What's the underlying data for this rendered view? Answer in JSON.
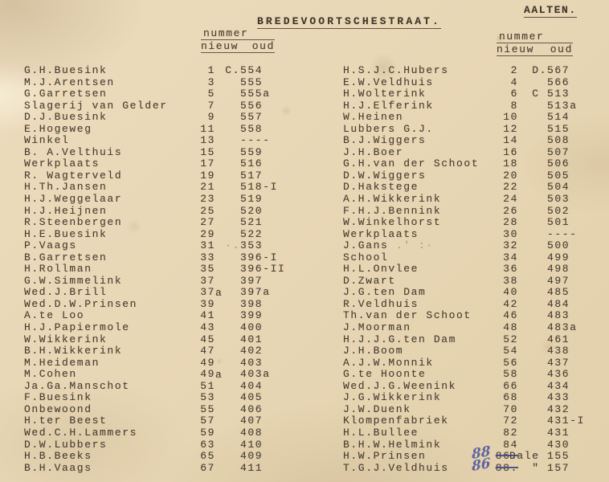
{
  "page": {
    "region_label": "AALTEN.",
    "street_title": "BREDEVOORTSCHESTRAAT.",
    "header": {
      "group": "nummer",
      "new": "nieuw",
      "old": "oud"
    },
    "ink_color": "#4a3e32",
    "handwriting_ink_color": "#464d9e",
    "paper_color": "#e8d7b5"
  },
  "left_column": {
    "rows": [
      {
        "name": "G.H.Buesink",
        "nieuw": "1",
        "oud": "554",
        "oud_prefix": "C."
      },
      {
        "name": "M.J.Arentsen",
        "nieuw": "3",
        "oud": "555"
      },
      {
        "name": "G.Garretsen",
        "nieuw": "5",
        "oud": "555a"
      },
      {
        "name": "Slagerij van Gelder",
        "nieuw": "7",
        "oud": "556"
      },
      {
        "name": "D.J.Buesink",
        "nieuw": "9",
        "oud": "557"
      },
      {
        "name": "E.Hogeweg",
        "nieuw": "11",
        "oud": "558"
      },
      {
        "name": "Winkel",
        "nieuw": "13",
        "oud": "----"
      },
      {
        "name": "B. A.Velthuis",
        "nieuw": "15",
        "oud": "559"
      },
      {
        "name": "Werkplaats",
        "nieuw": "17",
        "oud": "516"
      },
      {
        "name": "R. Wagterveld",
        "nieuw": "19",
        "oud": "517"
      },
      {
        "name": "H.Th.Jansen",
        "nieuw": "21",
        "oud": "518-I"
      },
      {
        "name": "H.J.Weggelaar",
        "nieuw": "23",
        "oud": "519"
      },
      {
        "name": "H.J.Heijnen",
        "nieuw": "25",
        "oud": "520"
      },
      {
        "name": "R.Steenbergen",
        "nieuw": "27",
        "oud": "521"
      },
      {
        "name": "H.E.Buesink",
        "nieuw": "29",
        "oud": "522"
      },
      {
        "name": "P.Vaags",
        "nieuw": "31",
        "oud": "353",
        "oud_prefix": "·.",
        "oud_prefix_faint": true
      },
      {
        "name": "B.Garretsen",
        "nieuw": "33",
        "oud": "396-I"
      },
      {
        "name": "H.Rollman",
        "nieuw": "35",
        "oud": "396-II"
      },
      {
        "name": "G.W.Simmelink",
        "nieuw": "37",
        "oud": "397"
      },
      {
        "name": "Wed.J.Brill",
        "nieuw": "37",
        "nieuw_suffix": "a",
        "oud": "397a"
      },
      {
        "name": "Wed.D.W.Prinsen",
        "nieuw": "39",
        "oud": "398"
      },
      {
        "name": "A.te Loo",
        "nieuw": "41",
        "oud": "399"
      },
      {
        "name": "H.J.Papiermole",
        "nieuw": "43",
        "oud": "400"
      },
      {
        "name": "W.Wikkerink",
        "nieuw": "45",
        "oud": "401"
      },
      {
        "name": "B.H.Wikkerink",
        "nieuw": "47",
        "oud": "402"
      },
      {
        "name": "M.Heideman",
        "nieuw": "49",
        "oud": "403"
      },
      {
        "name": "M.Cohen",
        "nieuw": "49",
        "nieuw_suffix": "a",
        "oud": "403a"
      },
      {
        "name": "Ja.Ga.Manschot",
        "nieuw": "51",
        "oud": "404"
      },
      {
        "name": "F.Buesink",
        "nieuw": "53",
        "oud": "405"
      },
      {
        "name": "Onbewoond",
        "nieuw": "55",
        "oud": "406"
      },
      {
        "name": "H.ter Beest",
        "nieuw": "57",
        "oud": "407"
      },
      {
        "name": "Wed.C.H.Lammers",
        "nieuw": "59",
        "oud": "408"
      },
      {
        "name": "D.W.Lubbers",
        "nieuw": "63",
        "oud": "410"
      },
      {
        "name": "H.B.Beeks",
        "nieuw": "65",
        "oud": "409"
      },
      {
        "name": "B.H.Vaags",
        "nieuw": "67",
        "oud": "411"
      }
    ]
  },
  "right_column": {
    "rows": [
      {
        "name": "H.S.J.C.Hubers",
        "nieuw": "2",
        "oud": "567",
        "oud_prefix": "D."
      },
      {
        "name": "E.W.Veldhuis",
        "nieuw": "4",
        "oud": "566"
      },
      {
        "name": "H.Wolterink",
        "nieuw": "6",
        "oud": "513",
        "oud_prefix": "C "
      },
      {
        "name": "H.J.Elferink",
        "nieuw": "8",
        "oud": "513a"
      },
      {
        "name": "W.Heinen",
        "nieuw": "10",
        "oud": "514"
      },
      {
        "name": "Lubbers G.J.",
        "nieuw": "12",
        "oud": "515"
      },
      {
        "name": "B.J.Wiggers",
        "nieuw": "14",
        "oud": "508"
      },
      {
        "name": "J.H.Boer",
        "nieuw": "16",
        "oud": "507"
      },
      {
        "name": "G.H.van der Schoot",
        "nieuw": "18",
        "oud": "506"
      },
      {
        "name": "D.W.Wiggers",
        "nieuw": "20",
        "oud": "505"
      },
      {
        "name": "D.Hakstege",
        "nieuw": "22",
        "oud": "504"
      },
      {
        "name": "A.H.Wikkerink",
        "nieuw": "24",
        "oud": "503"
      },
      {
        "name": "F.H.J.Bennink",
        "nieuw": "26",
        "oud": "502"
      },
      {
        "name": "W.Winkelhorst",
        "nieuw": "28",
        "oud": "501"
      },
      {
        "name": "Werkplaats",
        "nieuw": "30",
        "oud": "----"
      },
      {
        "name": "J.Gans",
        "name_suffix_faint": " .' :·",
        "nieuw": "32",
        "oud": "500"
      },
      {
        "name": "School",
        "nieuw": "34",
        "oud": "499"
      },
      {
        "name": "H.L.Onvlee",
        "nieuw": "36",
        "oud": "498"
      },
      {
        "name": "D.Zwart",
        "nieuw": "38",
        "oud": "497"
      },
      {
        "name": "J.G.ten Dam",
        "nieuw": "40",
        "oud": "485"
      },
      {
        "name": "R.Veldhuis",
        "nieuw": "42",
        "oud": "484"
      },
      {
        "name": "Th.van der Schoot",
        "nieuw": "46",
        "oud": "483"
      },
      {
        "name": "J.Moorman",
        "nieuw": "48",
        "oud": "483a"
      },
      {
        "name": "H.J.J.G.ten Dam",
        "nieuw": "52",
        "oud": "461"
      },
      {
        "name": "J.H.Boom",
        "nieuw": "54",
        "oud": "438"
      },
      {
        "name": "A.J.W.Monnik",
        "nieuw": "56",
        "oud": "437"
      },
      {
        "name": "G.te Hoonte",
        "nieuw": "58",
        "oud": "436"
      },
      {
        "name": "Wed.J.G.Weenink",
        "nieuw": "66",
        "oud": "434"
      },
      {
        "name": "J.G.Wikkerink",
        "nieuw": "68",
        "oud": "433"
      },
      {
        "name": "J.W.Duenk",
        "nieuw": "70",
        "oud": "432"
      },
      {
        "name": "Klompenfabriek",
        "nieuw": "72",
        "oud": "431-I"
      },
      {
        "name": "H.L.Bullee",
        "nieuw": "82",
        "oud": "431"
      },
      {
        "name": "B.H.W.Helmink",
        "nieuw": "84",
        "oud": "430"
      },
      {
        "name": "H.W.Prinsen",
        "nieuw": "86.",
        "nieuw_struck": true,
        "handwritten_nieuw": "88",
        "oud": "155",
        "oud_prefix": "Dale "
      },
      {
        "name": "T.G.J.Veldhuis",
        "nieuw": "88.",
        "nieuw_struck": true,
        "handwritten_nieuw": "86",
        "oud": "157",
        "oud_prefix": "\" "
      }
    ]
  }
}
